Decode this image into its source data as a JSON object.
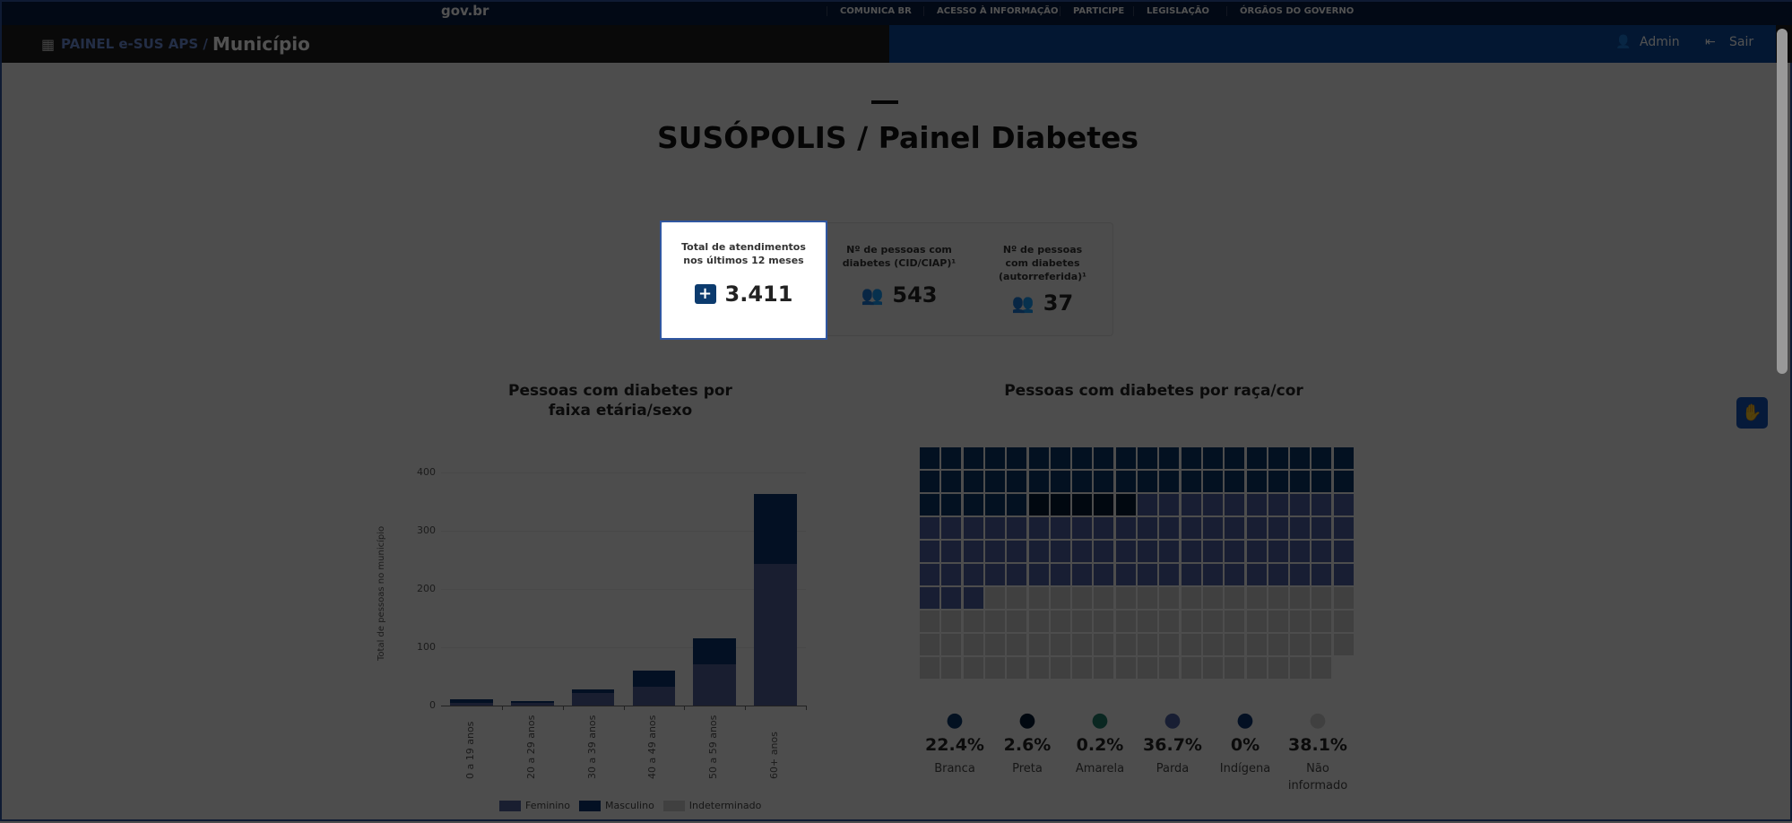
{
  "header": {
    "logo": "gov.br",
    "links": [
      "COMUNICA BR",
      "ACESSO À INFORMAÇÃO",
      "PARTICIPE",
      "LEGISLAÇÃO",
      "ÓRGÃOS DO GOVERNO"
    ],
    "app": "PAINEL e-SUS APS /",
    "page": "Município",
    "admin": "Admin",
    "logout": "Sair"
  },
  "title": {
    "city": "SUSÓPOLIS",
    "sep": " / ",
    "panel": "Painel Diabetes"
  },
  "cards": [
    {
      "label": "Total de atendimentos nos últimos 12 meses",
      "value": "3.411",
      "icon": "medical-kit-icon"
    },
    {
      "label": "Nº de pessoas com diabetes (CID/CIAP)¹",
      "value": "543",
      "icon": "people-icon"
    },
    {
      "label": "Nº de pessoas com diabetes (autorreferida)¹",
      "value": "37",
      "icon": "people-icon"
    }
  ],
  "chart_data": [
    {
      "type": "bar",
      "stacked": true,
      "title": "Pessoas com diabetes por faixa etária/sexo",
      "ylabel": "Total de pessoas no município",
      "ylim": [
        0,
        400
      ],
      "yticks": [
        0,
        100,
        200,
        300,
        400
      ],
      "categories": [
        "0 a 19 anos",
        "20 a 29 anos",
        "30 a 39 anos",
        "40 a 49 anos",
        "50 a 59 anos",
        "60+ anos"
      ],
      "series": [
        {
          "name": "Feminino",
          "color": "#4f5f95",
          "values": [
            5,
            4,
            22,
            33,
            71,
            243
          ]
        },
        {
          "name": "Masculino",
          "color": "#0c326f",
          "values": [
            6,
            4,
            5,
            27,
            45,
            120
          ]
        },
        {
          "name": "Indeterminado",
          "color": "#c8c8c8",
          "values": [
            0,
            0,
            0,
            0,
            0,
            0
          ]
        }
      ],
      "legend": "bottom",
      "grid": true
    },
    {
      "type": "waffle",
      "title": "Pessoas com diabetes por raça/cor",
      "categories": [
        {
          "name": "Branca",
          "percent": "22.4%",
          "color": "#0b3768",
          "cells": 45
        },
        {
          "name": "Preta",
          "percent": "2.6%",
          "color": "#061a33",
          "cells": 5
        },
        {
          "name": "Amarela",
          "percent": "0.2%",
          "color": "#1f7a68",
          "cells": 0
        },
        {
          "name": "Parda",
          "percent": "36.7%",
          "color": "#4b5f9e",
          "cells": 73
        },
        {
          "name": "Indígena",
          "percent": "0%",
          "color": "#0c326f",
          "cells": 0
        },
        {
          "name": "Não informado",
          "percent": "38.1%",
          "color": "#c6c6c6",
          "cells": 76
        }
      ]
    }
  ]
}
